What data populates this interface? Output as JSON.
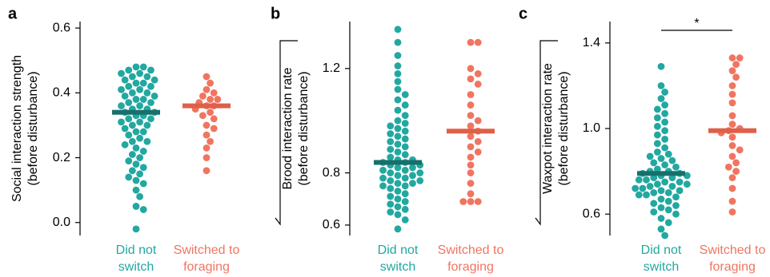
{
  "chart_data": [
    {
      "type": "beeswarm",
      "label": "a",
      "ylabel": [
        "Social interaction strength",
        "(before disturbance)"
      ],
      "ylabel_sqrt": false,
      "categories": [
        "Did not switch",
        "Switched to foraging"
      ],
      "ylim": [
        -0.04,
        0.62
      ],
      "yticks": [
        {
          "value": 0,
          "label": "0.0"
        },
        0.2,
        0.4,
        0.6
      ],
      "groups": [
        {
          "color": "#22a8a0",
          "median_color": "#17706b",
          "median": 0.34,
          "values": [
            0.48,
            0.48,
            0.47,
            0.47,
            0.46,
            0.46,
            0.45,
            0.45,
            0.44,
            0.44,
            0.43,
            0.43,
            0.42,
            0.42,
            0.41,
            0.41,
            0.4,
            0.4,
            0.39,
            0.39,
            0.38,
            0.38,
            0.37,
            0.37,
            0.36,
            0.36,
            0.35,
            0.35,
            0.34,
            0.34,
            0.33,
            0.33,
            0.32,
            0.32,
            0.31,
            0.31,
            0.3,
            0.3,
            0.29,
            0.28,
            0.28,
            0.27,
            0.26,
            0.25,
            0.25,
            0.24,
            0.23,
            0.22,
            0.21,
            0.2,
            0.19,
            0.18,
            0.17,
            0.16,
            0.15,
            0.14,
            0.13,
            0.12,
            0.1,
            0.08,
            0.05,
            0.04,
            -0.02
          ]
        },
        {
          "color": "#f07560",
          "median_color": "#de6048",
          "median": 0.36,
          "values": [
            0.45,
            0.43,
            0.41,
            0.4,
            0.39,
            0.38,
            0.38,
            0.37,
            0.36,
            0.36,
            0.35,
            0.34,
            0.33,
            0.32,
            0.3,
            0.29,
            0.27,
            0.25,
            0.23,
            0.2,
            0.16
          ]
        }
      ]
    },
    {
      "type": "beeswarm",
      "label": "b",
      "ylabel": [
        "Brood interaction rate",
        "(before disturbance)"
      ],
      "ylabel_sqrt": true,
      "categories": [
        "Did not switch",
        "Switched to foraging"
      ],
      "ylim": [
        0.56,
        1.38
      ],
      "yticks": [
        0.6,
        0.8,
        1.2
      ],
      "groups": [
        {
          "color": "#22a8a0",
          "median_color": "#17706b",
          "median": 0.84,
          "values": [
            1.35,
            1.3,
            1.25,
            1.21,
            1.18,
            1.15,
            1.12,
            1.1,
            1.08,
            1.06,
            1.04,
            1.02,
            1.0,
            0.99,
            0.98,
            0.97,
            0.96,
            0.95,
            0.94,
            0.93,
            0.92,
            0.91,
            0.9,
            0.89,
            0.88,
            0.87,
            0.86,
            0.85,
            0.85,
            0.84,
            0.84,
            0.83,
            0.83,
            0.82,
            0.82,
            0.81,
            0.81,
            0.8,
            0.8,
            0.79,
            0.79,
            0.78,
            0.78,
            0.77,
            0.77,
            0.76,
            0.76,
            0.75,
            0.75,
            0.74,
            0.73,
            0.72,
            0.71,
            0.7,
            0.69,
            0.68,
            0.67,
            0.66,
            0.65,
            0.64,
            0.62,
            0.585
          ]
        },
        {
          "color": "#f07560",
          "median_color": "#de6048",
          "median": 0.96,
          "values": [
            1.3,
            1.3,
            1.2,
            1.18,
            1.16,
            1.14,
            1.1,
            1.06,
            1.02,
            1.0,
            0.98,
            0.96,
            0.94,
            0.92,
            0.9,
            0.88,
            0.86,
            0.83,
            0.8,
            0.76,
            0.72,
            0.69,
            0.69,
            0.69
          ]
        }
      ]
    },
    {
      "type": "beeswarm",
      "label": "c",
      "ylabel": [
        "Waxpot interaction rate",
        "(before disturbance)"
      ],
      "ylabel_sqrt": true,
      "categories": [
        "Did not switch",
        "Switched to foraging"
      ],
      "ylim": [
        0.5,
        1.5
      ],
      "yticks": [
        0.6,
        {
          "value": 1,
          "label": "1.0"
        },
        1.4
      ],
      "annotation": "*",
      "groups": [
        {
          "color": "#22a8a0",
          "median_color": "#17706b",
          "median": 0.79,
          "values": [
            1.29,
            1.2,
            1.17,
            1.14,
            1.11,
            1.09,
            1.07,
            1.05,
            1.03,
            1.01,
            0.99,
            0.97,
            0.95,
            0.93,
            0.91,
            0.89,
            0.88,
            0.87,
            0.86,
            0.85,
            0.84,
            0.83,
            0.82,
            0.81,
            0.8,
            0.8,
            0.79,
            0.79,
            0.78,
            0.78,
            0.77,
            0.77,
            0.76,
            0.76,
            0.75,
            0.75,
            0.74,
            0.74,
            0.73,
            0.73,
            0.72,
            0.72,
            0.71,
            0.71,
            0.7,
            0.7,
            0.69,
            0.69,
            0.68,
            0.67,
            0.66,
            0.65,
            0.64,
            0.63,
            0.62,
            0.61,
            0.6,
            0.58,
            0.56,
            0.53,
            0.5
          ]
        },
        {
          "color": "#f07560",
          "median_color": "#de6048",
          "median": 0.99,
          "values": [
            1.33,
            1.33,
            1.3,
            1.27,
            1.24,
            1.2,
            1.16,
            1.12,
            1.06,
            1.02,
            1.0,
            0.99,
            0.98,
            0.96,
            0.92,
            0.9,
            0.87,
            0.84,
            0.82,
            0.8,
            0.77,
            0.72,
            0.66,
            0.61
          ]
        }
      ]
    }
  ]
}
